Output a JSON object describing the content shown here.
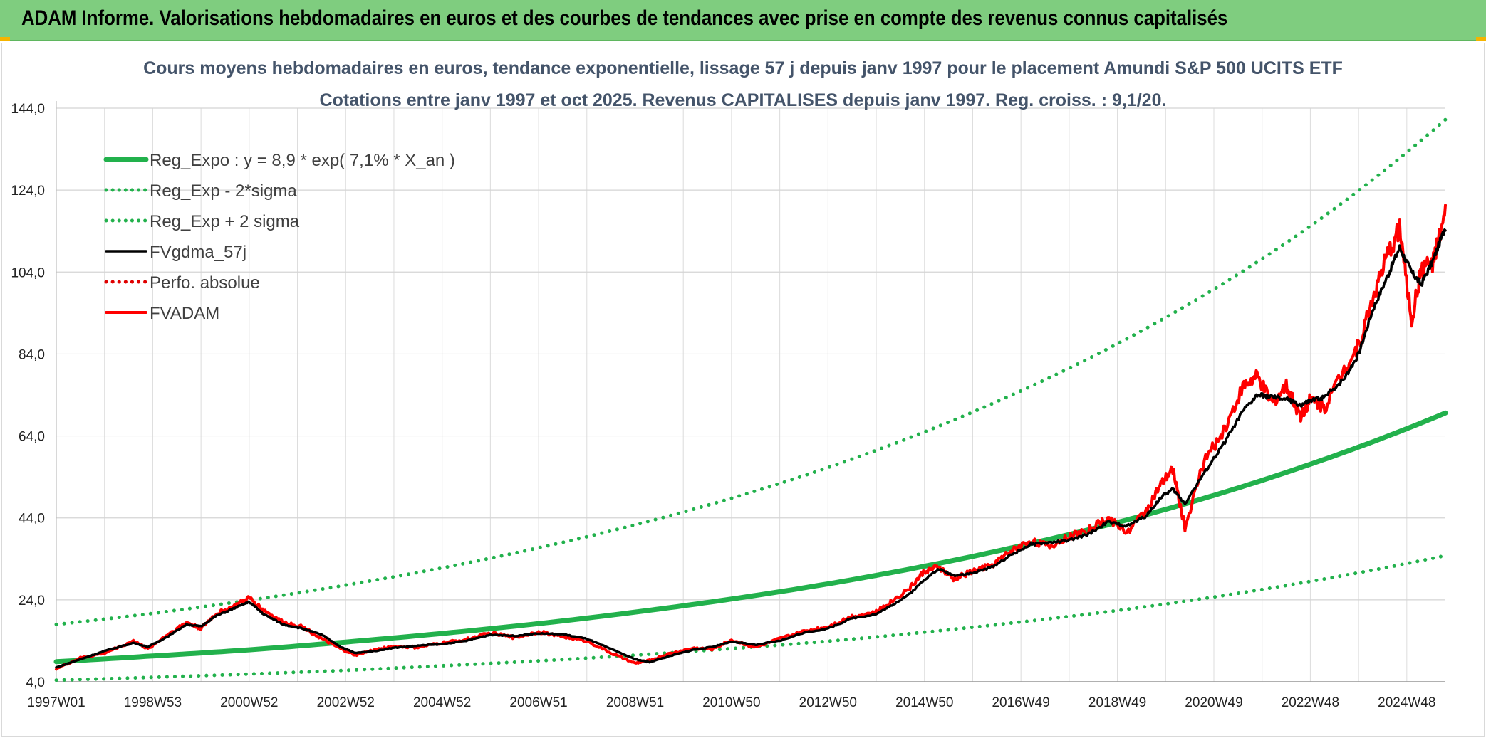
{
  "banner": {
    "title": "ADAM Informe. Valorisations hebdomadaires en euros et des courbes de tendances avec prise en compte des revenus connus capitalisés",
    "color": "#7fcd7f",
    "corner_color": "#f5b400"
  },
  "chart_data": {
    "type": "line",
    "title": "Cours moyens hebdomadaires en euros, tendance exponentielle, lissage 57 j depuis janv 1997 pour le placement Amundi S&P 500 UCITS ETF",
    "subtitle": "Cotations entre janv 1997 et oct 2025. Revenus CAPITALISES depuis janv 1997. Reg. croiss. : 9,1/20.",
    "xlabel": "",
    "ylabel": "",
    "xlim": [
      1997.0,
      2025.8
    ],
    "ylim": [
      4,
      144
    ],
    "y_ticks": [
      4,
      24,
      44,
      64,
      84,
      104,
      124,
      144
    ],
    "y_tick_labels": [
      "4,0",
      "24,0",
      "44,0",
      "64,0",
      "84,0",
      "104,0",
      "124,0",
      "144,0"
    ],
    "x_ticks": [
      1997.0,
      1999.0,
      2001.0,
      2003.0,
      2005.0,
      2007.0,
      2009.0,
      2011.0,
      2013.0,
      2015.0,
      2017.0,
      2019.0,
      2021.0,
      2023.0,
      2025.0
    ],
    "x_tick_labels": [
      "1997W01",
      "1998W53",
      "2000W52",
      "2002W52",
      "2004W52",
      "2006W51",
      "2008W51",
      "2010W50",
      "2012W50",
      "2014W50",
      "2016W49",
      "2018W49",
      "2020W49",
      "2022W48",
      "2024W48"
    ],
    "grid": true,
    "legend_position": "top-left",
    "series": [
      {
        "name": "Reg_Expo : y = 8,9 * exp( 7,1% *  X_an )",
        "color": "#22b14c",
        "style": "solid",
        "x": [
          1997,
          1999,
          2001,
          2003,
          2005,
          2007,
          2009,
          2011,
          2013,
          2015,
          2017,
          2019,
          2021,
          2023,
          2025.8
        ],
        "values": [
          8.9,
          10.3,
          11.8,
          13.7,
          15.8,
          18.2,
          21.0,
          24.2,
          27.9,
          32.2,
          37.2,
          42.9,
          49.5,
          57.1,
          69.6
        ]
      },
      {
        "name": "Reg_Exp - 2*sigma",
        "color": "#22b14c",
        "style": "dotted",
        "x": [
          1997,
          1999,
          2001,
          2003,
          2005,
          2007,
          2009,
          2011,
          2013,
          2015,
          2017,
          2019,
          2021,
          2023,
          2025.8
        ],
        "values": [
          4.4,
          5.1,
          5.9,
          6.8,
          7.9,
          9.1,
          10.5,
          12.1,
          13.9,
          16.1,
          18.6,
          21.4,
          24.7,
          28.5,
          34.8
        ]
      },
      {
        "name": "Reg_Exp + 2 sigma",
        "color": "#22b14c",
        "style": "dotted",
        "x": [
          1997,
          1999,
          2001,
          2003,
          2005,
          2007,
          2009,
          2011,
          2013,
          2015,
          2017,
          2019,
          2021,
          2023,
          2025.8
        ],
        "values": [
          18.0,
          20.7,
          23.9,
          27.6,
          31.8,
          36.7,
          42.3,
          48.8,
          56.3,
          65.0,
          75.0,
          86.5,
          99.8,
          115.2,
          141.2
        ]
      },
      {
        "name": "FVgdma_57j",
        "color": "#000000",
        "style": "solid",
        "x": [
          1997.0,
          1997.5,
          1998.0,
          1998.6,
          1998.9,
          1999.3,
          1999.7,
          2000.0,
          2000.3,
          2000.7,
          2001.0,
          2001.3,
          2001.7,
          2002.1,
          2002.5,
          2002.9,
          2003.2,
          2003.6,
          2004.0,
          2004.5,
          2005.0,
          2005.5,
          2006.0,
          2006.5,
          2007.0,
          2007.5,
          2008.0,
          2008.5,
          2009.0,
          2009.3,
          2009.7,
          2010.2,
          2010.6,
          2011.0,
          2011.5,
          2012.0,
          2012.5,
          2013.0,
          2013.5,
          2014.0,
          2014.3,
          2014.7,
          2015.0,
          2015.3,
          2015.6,
          2016.0,
          2016.4,
          2016.8,
          2017.2,
          2017.6,
          2018.0,
          2018.4,
          2018.8,
          2019.2,
          2019.6,
          2019.9,
          2020.15,
          2020.4,
          2020.8,
          2021.2,
          2021.6,
          2021.9,
          2022.2,
          2022.5,
          2022.8,
          2023.0,
          2023.3,
          2023.7,
          2024.0,
          2024.3,
          2024.6,
          2024.85,
          2025.1,
          2025.3,
          2025.55,
          2025.8
        ],
        "values": [
          7.5,
          9.5,
          11.5,
          13.5,
          12.5,
          15.0,
          18.0,
          17.5,
          20.0,
          22.0,
          23.5,
          20.5,
          18.0,
          17.0,
          15.5,
          12.5,
          11.0,
          11.5,
          12.3,
          12.8,
          13.2,
          14.0,
          15.5,
          15.2,
          15.8,
          15.6,
          14.5,
          12.0,
          9.5,
          8.8,
          10.2,
          11.8,
          12.5,
          13.8,
          13.0,
          14.0,
          16.0,
          17.0,
          19.5,
          20.5,
          22.5,
          25.5,
          29.0,
          31.5,
          30.0,
          30.5,
          32.0,
          35.0,
          37.5,
          38.0,
          38.5,
          40.0,
          43.0,
          42.0,
          44.5,
          49.0,
          51.0,
          47.5,
          55.0,
          62.0,
          70.0,
          74.0,
          73.5,
          73.0,
          71.5,
          72.5,
          73.5,
          78.0,
          84.0,
          95.0,
          103.0,
          110.0,
          104.0,
          101.0,
          107.0,
          115.0
        ]
      },
      {
        "name": "Perfo. absolue",
        "color": "#e00000",
        "style": "dotted",
        "x": [],
        "values": []
      },
      {
        "name": "FVADAM",
        "color": "#ff0000",
        "style": "solid",
        "x": [
          1997.0,
          1997.5,
          1998.0,
          1998.6,
          1998.9,
          1999.3,
          1999.7,
          2000.0,
          2000.3,
          2000.7,
          2001.0,
          2001.3,
          2001.7,
          2002.1,
          2002.5,
          2002.9,
          2003.2,
          2003.6,
          2004.0,
          2004.5,
          2005.0,
          2005.5,
          2006.0,
          2006.5,
          2007.0,
          2007.5,
          2008.0,
          2008.5,
          2009.0,
          2009.3,
          2009.7,
          2010.2,
          2010.6,
          2011.0,
          2011.5,
          2012.0,
          2012.5,
          2013.0,
          2013.5,
          2014.0,
          2014.3,
          2014.7,
          2015.0,
          2015.3,
          2015.6,
          2016.0,
          2016.4,
          2016.8,
          2017.2,
          2017.6,
          2018.0,
          2018.4,
          2018.8,
          2019.2,
          2019.6,
          2019.9,
          2020.15,
          2020.4,
          2020.8,
          2021.2,
          2021.6,
          2021.9,
          2022.2,
          2022.5,
          2022.8,
          2023.0,
          2023.3,
          2023.7,
          2024.0,
          2024.3,
          2024.6,
          2024.85,
          2025.1,
          2025.3,
          2025.55,
          2025.8
        ],
        "values": [
          7.2,
          9.8,
          11.0,
          14.0,
          12.0,
          15.5,
          18.5,
          17.0,
          20.5,
          22.5,
          24.5,
          21.5,
          18.5,
          17.5,
          14.5,
          12.0,
          10.5,
          11.8,
          12.6,
          12.4,
          13.5,
          14.3,
          15.9,
          14.8,
          16.2,
          15.0,
          14.0,
          11.0,
          8.5,
          9.2,
          10.8,
          12.2,
          12.0,
          14.2,
          12.4,
          14.5,
          16.3,
          17.5,
          20.0,
          21.0,
          23.5,
          27.0,
          31.0,
          32.0,
          29.0,
          31.0,
          32.5,
          36.0,
          38.5,
          37.0,
          39.5,
          41.0,
          44.0,
          40.5,
          46.0,
          52.0,
          56.0,
          41.5,
          58.0,
          65.0,
          76.0,
          78.5,
          72.0,
          76.0,
          69.0,
          73.0,
          71.0,
          80.5,
          86.0,
          98.0,
          108.0,
          115.0,
          92.0,
          105.0,
          106.5,
          118.0
        ]
      }
    ]
  }
}
